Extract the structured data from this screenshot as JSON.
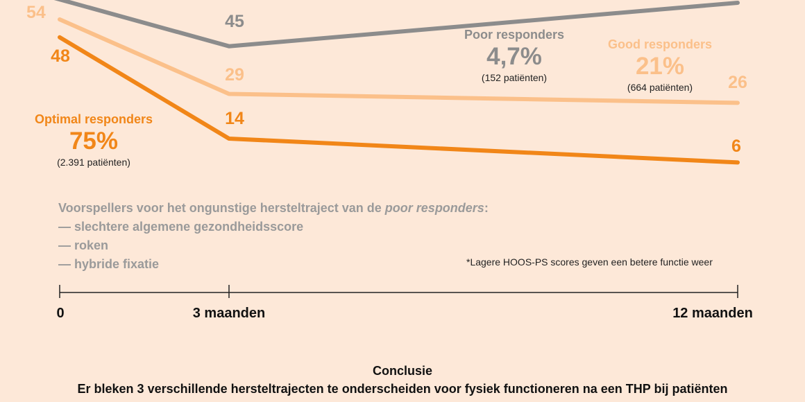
{
  "chart_data": {
    "type": "line",
    "x_ticks": [
      "0",
      "3 maanden",
      "12 maanden"
    ],
    "series": [
      {
        "name": "Poor responders",
        "values": [
          null,
          45,
          null
        ],
        "color": "#8c8c8c"
      },
      {
        "name": "Good responders",
        "values": [
          54,
          29,
          26
        ],
        "color": "#fbc08a"
      },
      {
        "name": "Optimal responders",
        "values": [
          48,
          14,
          6
        ],
        "color": "#f18618"
      }
    ],
    "groups": [
      {
        "name": "Poor responders",
        "pct": "4,7%",
        "n": "(152 patiënten)",
        "color": "#8c8c8c"
      },
      {
        "name": "Good responders",
        "pct": "21%",
        "n": "(664 patiënten)",
        "color": "#fbc08a"
      },
      {
        "name": "Optimal responders",
        "pct": "75%",
        "n": "(2.391 patiënten)",
        "color": "#f18618"
      }
    ],
    "grid": false
  },
  "predictors": {
    "title_start": "Voorspellers voor het ongunstige hersteltraject van de ",
    "title_italic": "poor responders",
    "title_end": ":",
    "items": [
      "— slechtere algemene gezondheidsscore",
      "— roken",
      "— hybride fixatie"
    ]
  },
  "note": "*Lagere HOOS-PS scores geven een betere functie weer",
  "conclusion": {
    "title": "Conclusie",
    "text": "Er bleken 3 verschillende hersteltrajecten te onderscheiden voor fysiek functioneren na een THP bij patiënten"
  }
}
